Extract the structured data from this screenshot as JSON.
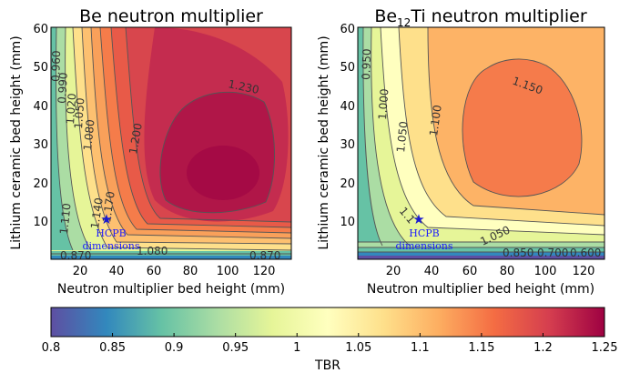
{
  "chart_data": [
    {
      "type": "heatmap",
      "title_main": "Be neutron multiplier",
      "title_sub": "",
      "title_tail": "",
      "xlabel": "Neutron multiplier bed height (mm)",
      "ylabel": "Lithium ceramic bed height (mm)",
      "xlim": [
        0,
        130
      ],
      "ylim": [
        0,
        60
      ],
      "xticks": [
        "20",
        "40",
        "60",
        "80",
        "100",
        "120"
      ],
      "yticks": [
        "10",
        "20",
        "30",
        "40",
        "50",
        "60"
      ],
      "peak": {
        "x": 88,
        "y": 20,
        "value": 1.24
      },
      "contour_levels": [
        0.87,
        0.96,
        0.99,
        1.02,
        1.05,
        1.08,
        1.11,
        1.14,
        1.17,
        1.2,
        1.23
      ],
      "contour_labels": [
        "1.230",
        "1.200",
        "1.170",
        "1.140",
        "1.110",
        "1.080",
        "1.050",
        "1.020",
        "0.990",
        "0.960",
        "0.870",
        "0.870",
        "1.080"
      ],
      "marker": {
        "x": 32,
        "y": 11,
        "label_line1": "HCPB",
        "label_line2": "dimensions"
      }
    },
    {
      "type": "heatmap",
      "title_main": "Be",
      "title_sub": "12",
      "title_tail": "Ti neutron multiplier",
      "xlabel": "Neutron multiplier bed height (mm)",
      "ylabel": "Lithium ceramic bed height (mm)",
      "xlim": [
        0,
        130
      ],
      "ylim": [
        0,
        60
      ],
      "xticks": [
        "20",
        "40",
        "60",
        "80",
        "100",
        "120"
      ],
      "yticks": [
        "10",
        "20",
        "30",
        "40",
        "50",
        "60"
      ],
      "peak": {
        "x": 78,
        "y": 32,
        "value": 1.16
      },
      "contour_levels": [
        0.95,
        1.0,
        1.05,
        1.1,
        1.15
      ],
      "contour_labels": [
        "1.150",
        "1.100",
        "1.050",
        "1.000",
        "0.950",
        "1.050",
        "0.850",
        "0.700",
        "0.600",
        "1.1"
      ],
      "marker": {
        "x": 32,
        "y": 11,
        "label_line1": "HCPB",
        "label_line2": "dimensions"
      }
    }
  ],
  "colorbar": {
    "label": "TBR",
    "min": 0.8,
    "max": 1.25,
    "ticks": [
      "0.8",
      "0.85",
      "0.9",
      "0.95",
      "1",
      "1.05",
      "1.1",
      "1.15",
      "1.2",
      "1.25"
    ],
    "colormap": "Spectral_r"
  }
}
